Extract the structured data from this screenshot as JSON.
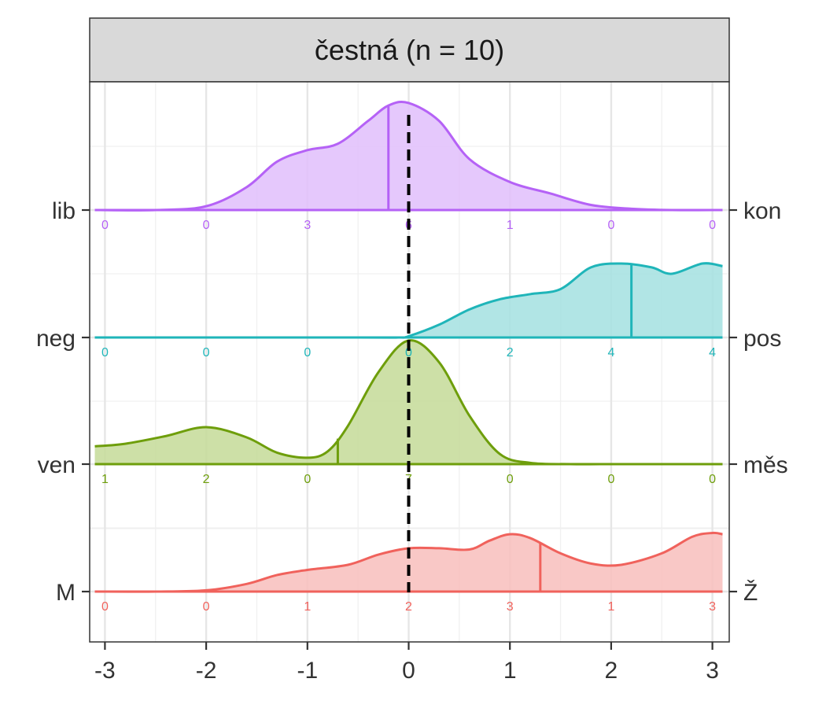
{
  "chart_data": {
    "type": "ridgeline",
    "title": "čestná (n = 10)",
    "xlim": [
      -3.1,
      3.1
    ],
    "x_ticks": [
      -3,
      -2,
      -1,
      0,
      1,
      2,
      3
    ],
    "x_tick_labels": [
      "-3",
      "-2",
      "-1",
      "0",
      "1",
      "2",
      "3"
    ],
    "reference_line_x": 0,
    "grid": true,
    "series": [
      {
        "left_label": "M",
        "right_label": "Ž",
        "color": "#F0625C",
        "fill": "#F8BEBC",
        "mean": 1.3,
        "density": [
          [
            -3.1,
            0
          ],
          [
            -2.5,
            0
          ],
          [
            -2,
            0.01
          ],
          [
            -1.6,
            0.06
          ],
          [
            -1.3,
            0.13
          ],
          [
            -1,
            0.17
          ],
          [
            -0.6,
            0.21
          ],
          [
            -0.3,
            0.29
          ],
          [
            0,
            0.34
          ],
          [
            0.3,
            0.34
          ],
          [
            0.6,
            0.33
          ],
          [
            0.8,
            0.4
          ],
          [
            1,
            0.45
          ],
          [
            1.2,
            0.42
          ],
          [
            1.5,
            0.3
          ],
          [
            1.8,
            0.22
          ],
          [
            2.1,
            0.21
          ],
          [
            2.5,
            0.3
          ],
          [
            2.8,
            0.43
          ],
          [
            3,
            0.46
          ],
          [
            3.1,
            0.45
          ]
        ],
        "counts": [
          "0",
          "0",
          "1",
          "2",
          "3",
          "1",
          "3"
        ]
      },
      {
        "left_label": "ven",
        "right_label": "měs",
        "color": "#6E9E0B",
        "fill": "#C4DB98",
        "mean": -0.7,
        "density": [
          [
            -3.1,
            0.14
          ],
          [
            -2.8,
            0.16
          ],
          [
            -2.4,
            0.22
          ],
          [
            -2,
            0.29
          ],
          [
            -1.6,
            0.21
          ],
          [
            -1.3,
            0.09
          ],
          [
            -1,
            0.05
          ],
          [
            -0.8,
            0.1
          ],
          [
            -0.6,
            0.3
          ],
          [
            -0.3,
            0.72
          ],
          [
            0,
            0.97
          ],
          [
            0.3,
            0.8
          ],
          [
            0.6,
            0.38
          ],
          [
            0.9,
            0.08
          ],
          [
            1.2,
            0.01
          ],
          [
            1.6,
            0
          ],
          [
            2,
            0
          ],
          [
            3.1,
            0
          ]
        ],
        "counts": [
          "1",
          "2",
          "0",
          "7",
          "0",
          "0",
          "0"
        ]
      },
      {
        "left_label": "neg",
        "right_label": "pos",
        "color": "#1FB5B9",
        "fill": "#A3E0E1",
        "mean": 2.2,
        "density": [
          [
            -3.1,
            0
          ],
          [
            -0.5,
            0
          ],
          [
            -0.1,
            0
          ],
          [
            0,
            0.01
          ],
          [
            0.3,
            0.1
          ],
          [
            0.6,
            0.22
          ],
          [
            0.9,
            0.3
          ],
          [
            1.2,
            0.34
          ],
          [
            1.5,
            0.38
          ],
          [
            1.8,
            0.55
          ],
          [
            2.1,
            0.58
          ],
          [
            2.4,
            0.55
          ],
          [
            2.6,
            0.5
          ],
          [
            2.9,
            0.58
          ],
          [
            3.1,
            0.56
          ]
        ],
        "counts": [
          "0",
          "0",
          "0",
          "0",
          "2",
          "4",
          "4"
        ]
      },
      {
        "left_label": "lib",
        "right_label": "kon",
        "color": "#B562F6",
        "fill": "#E1BEFB",
        "mean": -0.2,
        "density": [
          [
            -3.1,
            0
          ],
          [
            -2.5,
            0
          ],
          [
            -2,
            0.03
          ],
          [
            -1.6,
            0.18
          ],
          [
            -1.3,
            0.38
          ],
          [
            -1,
            0.47
          ],
          [
            -0.7,
            0.52
          ],
          [
            -0.4,
            0.7
          ],
          [
            -0.2,
            0.82
          ],
          [
            0,
            0.84
          ],
          [
            0.3,
            0.7
          ],
          [
            0.6,
            0.4
          ],
          [
            1,
            0.22
          ],
          [
            1.4,
            0.13
          ],
          [
            1.8,
            0.04
          ],
          [
            2.2,
            0.01
          ],
          [
            2.6,
            0
          ],
          [
            3.1,
            0
          ]
        ],
        "counts": [
          "0",
          "0",
          "3",
          "6",
          "1",
          "0",
          "0"
        ]
      }
    ]
  }
}
